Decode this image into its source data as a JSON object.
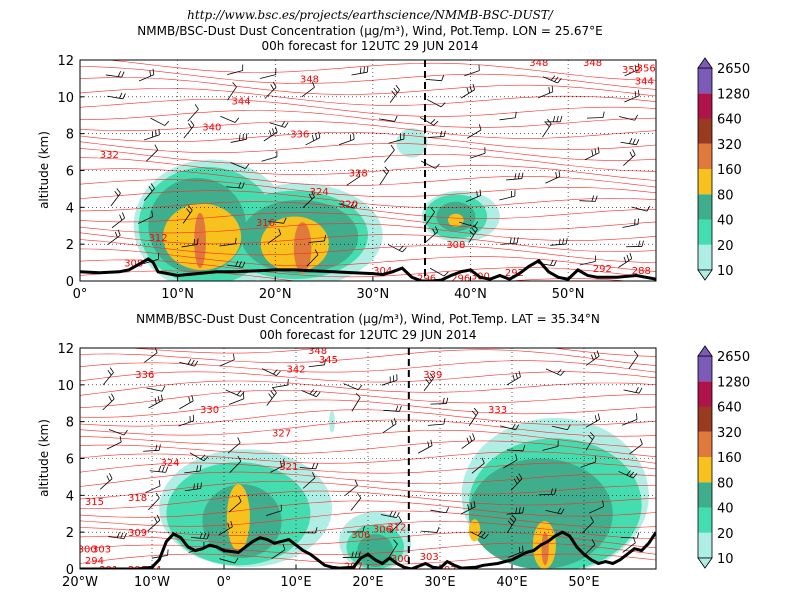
{
  "header_url": "http://www.bsc.es/projects/earthscience/NMMB-BSC-DUST/",
  "chart_data": [
    {
      "type": "contour-cross-section",
      "title": "NMMB/BSC-Dust Dust Concentration (µg/m³), Wind, Pot.Temp. LON = 25.67°E",
      "subtitle": "00h forecast for 12UTC 29 JUN 2014",
      "ylabel": "altitude (km)",
      "xlim": [
        0,
        59
      ],
      "ylim": [
        0,
        12
      ],
      "xticks": [
        0,
        10,
        20,
        30,
        40,
        50
      ],
      "xtick_labels": [
        "0°",
        "10°N",
        "20°N",
        "30°N",
        "40°N",
        "50°N"
      ],
      "yticks": [
        0,
        2,
        4,
        6,
        8,
        10,
        12
      ],
      "ytick_labels": [
        "0",
        "2",
        "4",
        "6",
        "8",
        "10",
        "12"
      ],
      "grid": true,
      "dashed_line_x": 35.34,
      "theta_labels": [
        {
          "x": 23.5,
          "y": 11.0,
          "t": "348"
        },
        {
          "x": 16.5,
          "y": 9.8,
          "t": "344"
        },
        {
          "x": 13.5,
          "y": 8.4,
          "t": "340"
        },
        {
          "x": 22.5,
          "y": 8.0,
          "t": "336"
        },
        {
          "x": 3.0,
          "y": 6.9,
          "t": "332"
        },
        {
          "x": 28.5,
          "y": 5.9,
          "t": "328"
        },
        {
          "x": 24.5,
          "y": 4.9,
          "t": "324"
        },
        {
          "x": 27.5,
          "y": 4.2,
          "t": "320"
        },
        {
          "x": 19.0,
          "y": 3.2,
          "t": "316"
        },
        {
          "x": 8.0,
          "y": 2.4,
          "t": "312"
        },
        {
          "x": 5.5,
          "y": 1.0,
          "t": "308"
        },
        {
          "x": 31.0,
          "y": 0.6,
          "t": "304"
        },
        {
          "x": 35.5,
          "y": 0.2,
          "t": "296"
        },
        {
          "x": 38.5,
          "y": 2.0,
          "t": "308"
        },
        {
          "x": 39.0,
          "y": 0.2,
          "t": "296"
        },
        {
          "x": 41.0,
          "y": 0.3,
          "t": "300"
        },
        {
          "x": 44.5,
          "y": 0.5,
          "t": "292"
        },
        {
          "x": 47.0,
          "y": 11.9,
          "t": "348"
        },
        {
          "x": 52.5,
          "y": 11.9,
          "t": "348"
        },
        {
          "x": 56.5,
          "y": 11.5,
          "t": "352"
        },
        {
          "x": 58.0,
          "y": 11.6,
          "t": "356"
        },
        {
          "x": 57.8,
          "y": 10.9,
          "t": "344"
        },
        {
          "x": 53.5,
          "y": 0.7,
          "t": "292"
        },
        {
          "x": 57.5,
          "y": 0.6,
          "t": "288"
        }
      ],
      "dust_regions": [
        {
          "level": 10,
          "cx": 13.5,
          "cy": 3.0,
          "rx": 8.0,
          "ry": 3.6
        },
        {
          "level": 10,
          "cx": 22.5,
          "cy": 2.5,
          "rx": 8.5,
          "ry": 2.8
        },
        {
          "level": 10,
          "cx": 39.0,
          "cy": 3.5,
          "rx": 4.0,
          "ry": 1.4
        },
        {
          "level": 10,
          "cx": 34.0,
          "cy": 7.5,
          "rx": 1.6,
          "ry": 0.8
        },
        {
          "level": 20,
          "cx": 13.0,
          "cy": 3.0,
          "rx": 7.0,
          "ry": 3.2
        },
        {
          "level": 20,
          "cx": 22.0,
          "cy": 2.5,
          "rx": 7.5,
          "ry": 2.4
        },
        {
          "level": 20,
          "cx": 38.5,
          "cy": 3.5,
          "rx": 3.2,
          "ry": 1.2
        },
        {
          "level": 40,
          "cx": 12.0,
          "cy": 3.0,
          "rx": 5.0,
          "ry": 2.6
        },
        {
          "level": 40,
          "cx": 22.5,
          "cy": 2.4,
          "rx": 6.0,
          "ry": 2.0
        },
        {
          "level": 40,
          "cx": 38.5,
          "cy": 3.5,
          "rx": 2.0,
          "ry": 0.8
        },
        {
          "level": 80,
          "cx": 12.5,
          "cy": 2.4,
          "rx": 4.0,
          "ry": 1.8
        },
        {
          "level": 80,
          "cx": 22.0,
          "cy": 2.0,
          "rx": 3.5,
          "ry": 1.5
        },
        {
          "level": 80,
          "cx": 38.5,
          "cy": 3.3,
          "rx": 0.8,
          "ry": 0.35
        },
        {
          "level": 160,
          "cx": 12.3,
          "cy": 2.2,
          "rx": 0.6,
          "ry": 1.5
        },
        {
          "level": 160,
          "cx": 22.8,
          "cy": 1.8,
          "rx": 0.9,
          "ry": 1.4
        }
      ],
      "orography": [
        [
          0,
          0.5
        ],
        [
          2,
          0.45
        ],
        [
          4,
          0.5
        ],
        [
          5,
          0.6
        ],
        [
          6,
          0.9
        ],
        [
          7,
          1.2
        ],
        [
          7.5,
          1.0
        ],
        [
          8,
          0.5
        ],
        [
          9,
          0.4
        ],
        [
          10,
          0.3
        ],
        [
          12,
          0.4
        ],
        [
          14,
          0.5
        ],
        [
          16,
          0.5
        ],
        [
          18,
          0.55
        ],
        [
          20,
          0.6
        ],
        [
          22,
          0.6
        ],
        [
          24,
          0.55
        ],
        [
          26,
          0.5
        ],
        [
          28,
          0.45
        ],
        [
          30,
          0.4
        ],
        [
          31,
          0.35
        ],
        [
          32,
          0.5
        ],
        [
          33,
          0.7
        ],
        [
          34,
          0.2
        ],
        [
          35,
          0.0
        ],
        [
          36,
          0.0
        ],
        [
          37,
          0.05
        ],
        [
          38,
          0.3
        ],
        [
          39,
          0.5
        ],
        [
          40,
          0.6
        ],
        [
          41,
          0.2
        ],
        [
          42,
          0.1
        ],
        [
          43,
          0.3
        ],
        [
          44,
          0.1
        ],
        [
          45,
          0.4
        ],
        [
          46,
          0.8
        ],
        [
          47,
          1.1
        ],
        [
          48,
          0.5
        ],
        [
          49,
          0.2
        ],
        [
          50,
          0.1
        ],
        [
          51,
          0.6
        ],
        [
          52,
          0.3
        ],
        [
          53,
          0.2
        ],
        [
          55,
          0.2
        ],
        [
          57,
          0.3
        ],
        [
          59,
          0.1
        ]
      ]
    },
    {
      "type": "contour-cross-section",
      "title": "NMMB/BSC-Dust Dust Concentration (µg/m³), Wind, Pot.Temp. LAT = 35.34°N",
      "subtitle": "00h forecast for 12UTC 29 JUN 2014",
      "ylabel": "altitude (km)",
      "xlim": [
        -20,
        60
      ],
      "ylim": [
        0,
        12
      ],
      "xticks": [
        -20,
        -10,
        0,
        10,
        20,
        30,
        40,
        50
      ],
      "xtick_labels": [
        "20°W",
        "10°W",
        "0°",
        "10°E",
        "20°E",
        "30°E",
        "40°E",
        "50°E"
      ],
      "yticks": [
        0,
        2,
        4,
        6,
        8,
        10,
        12
      ],
      "ytick_labels": [
        "0",
        "2",
        "4",
        "6",
        "8",
        "10",
        "12"
      ],
      "grid": true,
      "dashed_line_x": 25.67,
      "theta_labels": [
        {
          "x": 13,
          "y": 11.9,
          "t": "348"
        },
        {
          "x": 10,
          "y": 10.9,
          "t": "342"
        },
        {
          "x": 14.5,
          "y": 11.4,
          "t": "345"
        },
        {
          "x": 32,
          "y": 12.2,
          "t": "351"
        },
        {
          "x": 29,
          "y": 10.6,
          "t": "339"
        },
        {
          "x": -11,
          "y": 10.6,
          "t": "336"
        },
        {
          "x": -2,
          "y": 8.7,
          "t": "330"
        },
        {
          "x": 38,
          "y": 8.7,
          "t": "333"
        },
        {
          "x": 8,
          "y": 7.4,
          "t": "327"
        },
        {
          "x": -7.5,
          "y": 5.8,
          "t": "324"
        },
        {
          "x": 9,
          "y": 5.6,
          "t": "321"
        },
        {
          "x": -18,
          "y": 3.7,
          "t": "315"
        },
        {
          "x": -12,
          "y": 3.9,
          "t": "318"
        },
        {
          "x": -12,
          "y": 2.0,
          "t": "309"
        },
        {
          "x": 19,
          "y": 1.9,
          "t": "306"
        },
        {
          "x": 22,
          "y": 2.2,
          "t": "306"
        },
        {
          "x": 24,
          "y": 2.3,
          "t": "312"
        },
        {
          "x": -17,
          "y": 1.1,
          "t": "303"
        },
        {
          "x": -19,
          "y": 1.1,
          "t": "300"
        },
        {
          "x": -18,
          "y": 0.5,
          "t": "294"
        },
        {
          "x": -16,
          "y": 0.0,
          "t": "291"
        },
        {
          "x": -12,
          "y": 0.0,
          "t": "291"
        },
        {
          "x": -10,
          "y": 0.0,
          "t": "294"
        },
        {
          "x": 18,
          "y": 0.2,
          "t": "297"
        },
        {
          "x": 24.5,
          "y": 0.6,
          "t": "300"
        },
        {
          "x": 28.5,
          "y": 0.7,
          "t": "303"
        },
        {
          "x": 31,
          "y": 0.0,
          "t": "297"
        }
      ],
      "dust_regions": [
        {
          "level": 10,
          "cx": 3.0,
          "cy": 3.3,
          "rx": 12.0,
          "ry": 3.2
        },
        {
          "level": 10,
          "cx": 21.0,
          "cy": 1.5,
          "rx": 5.0,
          "ry": 1.6
        },
        {
          "level": 10,
          "cx": 46.0,
          "cy": 4.0,
          "rx": 13.0,
          "ry": 4.2
        },
        {
          "level": 10,
          "cx": 15.0,
          "cy": 8.0,
          "rx": 0.4,
          "ry": 0.6
        },
        {
          "level": 20,
          "cx": 2.0,
          "cy": 3.0,
          "rx": 10.0,
          "ry": 2.8
        },
        {
          "level": 20,
          "cx": 21.0,
          "cy": 1.2,
          "rx": 4.0,
          "ry": 1.2
        },
        {
          "level": 20,
          "cx": 46.0,
          "cy": 3.5,
          "rx": 12.0,
          "ry": 3.6
        },
        {
          "level": 40,
          "cx": 2.5,
          "cy": 2.6,
          "rx": 5.5,
          "ry": 2.0
        },
        {
          "level": 40,
          "cx": 44.0,
          "cy": 3.0,
          "rx": 10.0,
          "ry": 3.0
        },
        {
          "level": 40,
          "cx": 21.0,
          "cy": 1.0,
          "rx": 2.5,
          "ry": 0.9
        },
        {
          "level": 80,
          "cx": 2.0,
          "cy": 2.8,
          "rx": 1.6,
          "ry": 1.8
        },
        {
          "level": 80,
          "cx": 34.8,
          "cy": 2.1,
          "rx": 0.8,
          "ry": 0.6
        },
        {
          "level": 80,
          "cx": 44.5,
          "cy": 1.3,
          "rx": 1.6,
          "ry": 1.3
        },
        {
          "level": 160,
          "cx": 44.6,
          "cy": 1.1,
          "rx": 0.5,
          "ry": 0.9
        }
      ],
      "orography": [
        [
          -20,
          0.0
        ],
        [
          -12,
          0.0
        ],
        [
          -10,
          0.1
        ],
        [
          -9,
          0.5
        ],
        [
          -8,
          1.5
        ],
        [
          -7,
          1.9
        ],
        [
          -6,
          1.7
        ],
        [
          -5,
          1.2
        ],
        [
          -4,
          1.0
        ],
        [
          -3,
          1.1
        ],
        [
          -2,
          1.3
        ],
        [
          -1,
          1.2
        ],
        [
          0,
          1.0
        ],
        [
          2,
          0.9
        ],
        [
          4,
          1.5
        ],
        [
          5,
          1.7
        ],
        [
          6,
          1.6
        ],
        [
          7,
          1.4
        ],
        [
          8,
          1.5
        ],
        [
          9,
          1.6
        ],
        [
          10,
          1.3
        ],
        [
          11,
          1.0
        ],
        [
          12,
          0.8
        ],
        [
          13,
          0.5
        ],
        [
          14,
          0.2
        ],
        [
          15,
          0.1
        ],
        [
          16,
          0.05
        ],
        [
          18,
          0.1
        ],
        [
          19,
          0.6
        ],
        [
          20,
          0.8
        ],
        [
          21,
          0.5
        ],
        [
          22,
          0.3
        ],
        [
          23,
          0.6
        ],
        [
          24,
          0.3
        ],
        [
          25,
          0.1
        ],
        [
          26,
          0.0
        ],
        [
          28,
          0.3
        ],
        [
          29,
          0.1
        ],
        [
          30,
          0.05
        ],
        [
          31,
          0.4
        ],
        [
          32,
          0.2
        ],
        [
          33,
          0.05
        ],
        [
          35,
          0.1
        ],
        [
          36,
          0.2
        ],
        [
          38,
          0.3
        ],
        [
          40,
          0.5
        ],
        [
          41,
          0.7
        ],
        [
          42,
          0.9
        ],
        [
          43,
          1.0
        ],
        [
          44,
          1.3
        ],
        [
          45,
          1.5
        ],
        [
          46,
          1.8
        ],
        [
          47,
          2.0
        ],
        [
          48,
          1.8
        ],
        [
          49,
          1.2
        ],
        [
          50,
          0.8
        ],
        [
          51,
          0.5
        ],
        [
          52,
          0.3
        ],
        [
          53,
          0.4
        ],
        [
          54,
          0.3
        ],
        [
          55,
          0.5
        ],
        [
          56,
          0.8
        ],
        [
          57,
          1.1
        ],
        [
          58,
          1.0
        ],
        [
          59,
          1.4
        ],
        [
          60,
          2.0
        ]
      ]
    }
  ],
  "colorbar": {
    "levels": [
      "10",
      "20",
      "40",
      "80",
      "160",
      "320",
      "640",
      "1280",
      "2650"
    ],
    "colors": [
      "#aeeee4",
      "#44ddb0",
      "#3fae8c",
      "#f8c21e",
      "#e07a3c",
      "#9a3a20",
      "#b0124a",
      "#7b5ab8"
    ],
    "extend_low_color": "#aeeee4",
    "extend_high_color": "#7b5ab8"
  },
  "colors": {
    "theta_line": "#ff2a2a",
    "orography": "#000000",
    "grid": "#000000"
  }
}
